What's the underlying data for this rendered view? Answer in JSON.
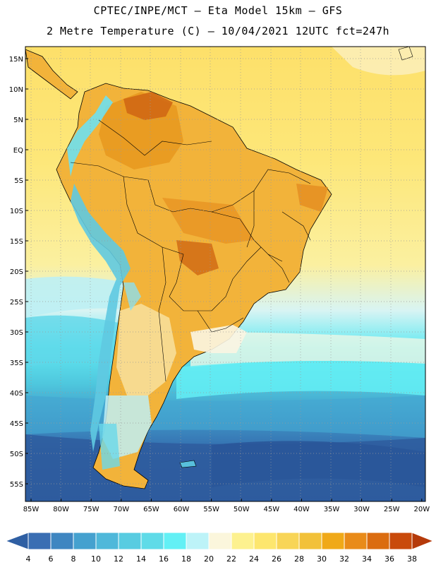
{
  "header": {
    "line1": "CPTEC/INPE/MCT –  Eta Model 15km – GFS",
    "line2": "2 Metre Temperature (C) – 10/04/2021 12UTC fct=247h"
  },
  "map": {
    "lat_labels": [
      "15N",
      "10N",
      "5N",
      "EQ",
      "5S",
      "10S",
      "15S",
      "20S",
      "25S",
      "30S",
      "35S",
      "40S",
      "45S",
      "50S",
      "55S"
    ],
    "lon_labels": [
      "85W",
      "80W",
      "75W",
      "70W",
      "65W",
      "60W",
      "55W",
      "50W",
      "45W",
      "40W",
      "35W",
      "30W",
      "25W",
      "20W"
    ]
  },
  "colorbar": {
    "labels": [
      "4",
      "6",
      "8",
      "10",
      "12",
      "14",
      "16",
      "18",
      "20",
      "22",
      "24",
      "26",
      "28",
      "30",
      "32",
      "34",
      "36",
      "38"
    ],
    "colors": [
      "#3a6eb3",
      "#3f86c1",
      "#45a1cf",
      "#4fb8da",
      "#58cce1",
      "#5fdbe8",
      "#63f0f5",
      "#bdf3f8",
      "#fbf6dc",
      "#fdf18f",
      "#fde66e",
      "#f8d557",
      "#f2c139",
      "#f0a918",
      "#e98b19",
      "#db6c10",
      "#c94a0b"
    ],
    "left_arrow_color": "#2f5fa3",
    "right_arrow_color": "#b53a0a"
  }
}
